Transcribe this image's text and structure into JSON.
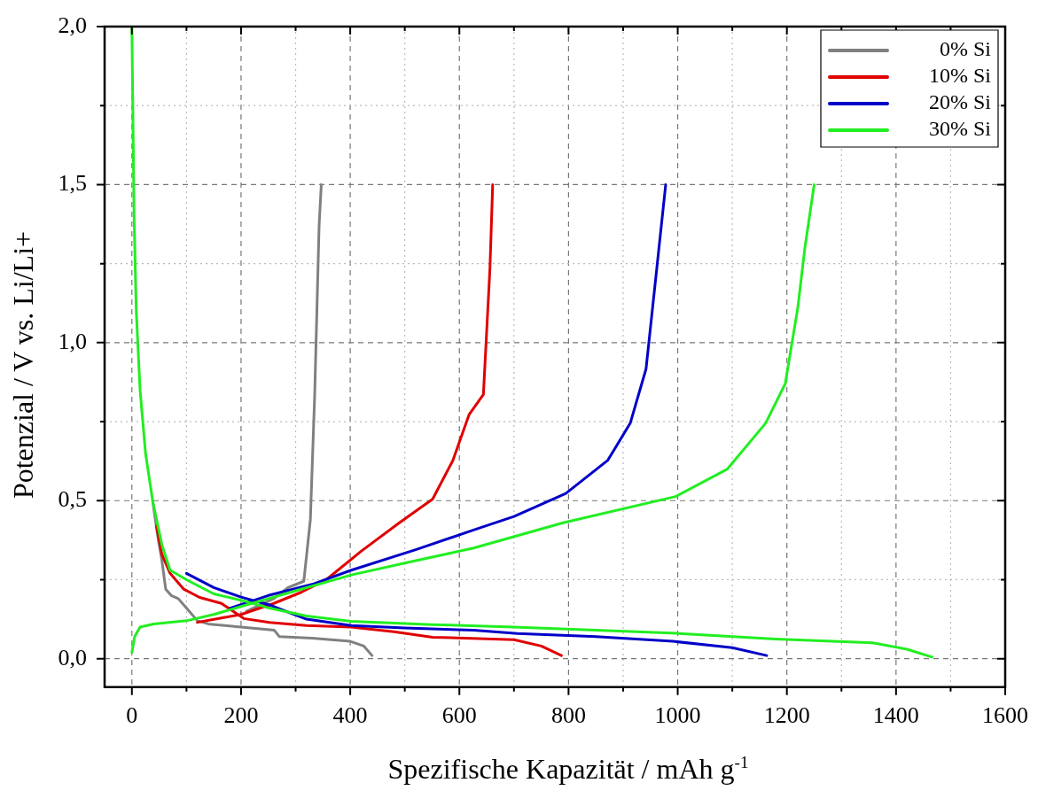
{
  "chart_data": {
    "type": "line",
    "xlabel": "Spezifische Kapazität / mAh g$^{-1}$",
    "ylabel": "Potenzial / V vs. Li/Li+",
    "xlim": [
      -50,
      1600
    ],
    "ylim": [
      -0.09,
      2.0
    ],
    "xticks": [
      0,
      {
        "value": 100,
        "label": null
      },
      200,
      {
        "value": 300,
        "label": null
      },
      400,
      {
        "value": 500,
        "label": null
      },
      600,
      {
        "value": 700,
        "label": null
      },
      800,
      {
        "value": 900,
        "label": null
      },
      1000,
      {
        "value": 1100,
        "label": null
      },
      1200,
      {
        "value": 1300,
        "label": null
      },
      1400,
      {
        "value": 1500,
        "label": null
      },
      1600
    ],
    "yticks": [
      {
        "value": 0,
        "label": "0,0"
      },
      {
        "value": 0.25,
        "label": null
      },
      {
        "value": 0.5,
        "label": "0,5"
      },
      {
        "value": 0.75,
        "label": null
      },
      {
        "value": 1.0,
        "label": "1,0"
      },
      {
        "value": 1.25,
        "label": null
      },
      {
        "value": 1.5,
        "label": "1,5"
      },
      {
        "value": 1.75,
        "label": null
      },
      {
        "value": 2.0,
        "label": "2,0"
      }
    ],
    "grid": true,
    "legend": "top right",
    "marker": "none",
    "line_style": "solid",
    "series": [
      {
        "name": "0% Si",
        "color": "#808080",
        "x": [
          38,
          48,
          55,
          62,
          72,
          85,
          100,
          120,
          140,
          200,
          261,
          270,
          330,
          400,
          425,
          440,
          null,
          210,
          260,
          286,
          315,
          327,
          335,
          343,
          347
        ],
        "values": [
          0.5,
          0.38,
          0.31,
          0.22,
          0.2,
          0.19,
          0.16,
          0.12,
          0.11,
          0.1,
          0.09,
          0.07,
          0.065,
          0.055,
          0.04,
          0.01,
          null,
          0.15,
          0.19,
          0.225,
          0.245,
          0.44,
          0.84,
          1.37,
          1.5
        ]
      },
      {
        "name": "10% Si",
        "color": "#e00000",
        "x": [
          45,
          55,
          70,
          95,
          124,
          164,
          205,
          252,
          320,
          402,
          480,
          551,
          700,
          750,
          787,
          null,
          120,
          200,
          260,
          310,
          356,
          420,
          490,
          551,
          588,
          618,
          644,
          656,
          661
        ],
        "values": [
          0.42,
          0.33,
          0.27,
          0.22,
          0.194,
          0.175,
          0.127,
          0.115,
          0.105,
          0.1,
          0.085,
          0.068,
          0.06,
          0.04,
          0.01,
          null,
          0.115,
          0.14,
          0.175,
          0.21,
          0.25,
          0.34,
          0.43,
          0.505,
          0.627,
          0.773,
          0.836,
          1.235,
          1.5
        ]
      },
      {
        "name": "20% Si",
        "color": "#0000c8",
        "x": [
          100,
          150,
          200,
          252,
          320,
          402,
          500,
          626,
          706,
          850,
          991,
          1100,
          1163,
          null,
          180,
          250,
          330,
          402,
          520,
          626,
          700,
          795,
          872,
          913,
          942,
          960,
          978
        ],
        "values": [
          0.27,
          0.225,
          0.195,
          0.17,
          0.125,
          0.105,
          0.097,
          0.09,
          0.08,
          0.07,
          0.055,
          0.035,
          0.01,
          null,
          0.16,
          0.2,
          0.235,
          0.28,
          0.345,
          0.407,
          0.45,
          0.523,
          0.628,
          0.745,
          0.917,
          1.208,
          1.5
        ]
      },
      {
        "name": "30% Si",
        "color": "#22ee22",
        "x": [
          0,
          2,
          4,
          8,
          15,
          25,
          38,
          55,
          70,
          100,
          150,
          200,
          252,
          320,
          402,
          550,
          700,
          850,
          1002,
          1179,
          1357,
          1420,
          1466,
          null,
          0,
          5,
          15,
          40,
          100,
          150,
          200,
          250,
          300,
          402,
          520,
          626,
          790,
          996,
          1091,
          1161,
          1197,
          1220,
          1233,
          1250
        ],
        "values": [
          2.0,
          1.7,
          1.4,
          1.1,
          0.85,
          0.65,
          0.5,
          0.36,
          0.28,
          0.25,
          0.205,
          0.185,
          0.16,
          0.135,
          0.118,
          0.108,
          0.1,
          0.09,
          0.08,
          0.062,
          0.05,
          0.03,
          0.005,
          null,
          0.02,
          0.07,
          0.1,
          0.11,
          0.12,
          0.14,
          0.165,
          0.19,
          0.215,
          0.265,
          0.31,
          0.35,
          0.43,
          0.513,
          0.6,
          0.745,
          0.87,
          1.11,
          1.3,
          1.5
        ]
      }
    ]
  }
}
